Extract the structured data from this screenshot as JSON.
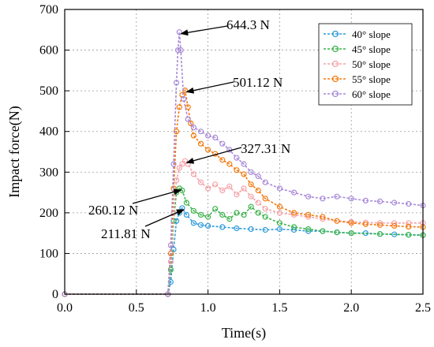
{
  "chart_data": {
    "type": "line",
    "xlabel": "Time(s)",
    "ylabel": "Impact force(N)",
    "xlim": [
      0,
      2.5
    ],
    "ylim": [
      0,
      700
    ],
    "xticks": [
      "0.0",
      "0.5",
      "1.0",
      "1.5",
      "2.0",
      "2.5"
    ],
    "yticks": [
      "0",
      "100",
      "200",
      "300",
      "400",
      "500",
      "600",
      "700"
    ],
    "grid": true,
    "legend_position": "top-right",
    "series": [
      {
        "name": "40° slope",
        "color": "#2e9bdc",
        "points": [
          [
            0.0,
            0
          ],
          [
            0.72,
            0
          ],
          [
            0.74,
            30
          ],
          [
            0.76,
            110
          ],
          [
            0.78,
            180
          ],
          [
            0.8,
            200
          ],
          [
            0.82,
            211.81
          ],
          [
            0.85,
            195
          ],
          [
            0.9,
            175
          ],
          [
            0.95,
            170
          ],
          [
            1.0,
            168
          ],
          [
            1.1,
            165
          ],
          [
            1.2,
            162
          ],
          [
            1.3,
            160
          ],
          [
            1.4,
            158
          ],
          [
            1.5,
            160
          ],
          [
            1.6,
            158
          ],
          [
            1.7,
            155
          ],
          [
            1.8,
            155
          ],
          [
            1.9,
            152
          ],
          [
            2.0,
            150
          ],
          [
            2.1,
            150
          ],
          [
            2.2,
            148
          ],
          [
            2.3,
            147
          ],
          [
            2.4,
            146
          ],
          [
            2.5,
            145
          ]
        ]
      },
      {
        "name": "45° slope",
        "color": "#3cb44b",
        "points": [
          [
            0.0,
            0
          ],
          [
            0.72,
            0
          ],
          [
            0.74,
            60
          ],
          [
            0.76,
            180
          ],
          [
            0.78,
            250
          ],
          [
            0.8,
            260.12
          ],
          [
            0.82,
            255
          ],
          [
            0.85,
            225
          ],
          [
            0.9,
            205
          ],
          [
            0.95,
            195
          ],
          [
            1.0,
            190
          ],
          [
            1.05,
            210
          ],
          [
            1.1,
            195
          ],
          [
            1.15,
            185
          ],
          [
            1.2,
            200
          ],
          [
            1.25,
            195
          ],
          [
            1.3,
            215
          ],
          [
            1.35,
            200
          ],
          [
            1.4,
            190
          ],
          [
            1.5,
            175
          ],
          [
            1.6,
            165
          ],
          [
            1.7,
            160
          ],
          [
            1.8,
            155
          ],
          [
            1.9,
            152
          ],
          [
            2.0,
            150
          ],
          [
            2.2,
            148
          ],
          [
            2.4,
            146
          ],
          [
            2.5,
            145
          ]
        ]
      },
      {
        "name": "50° slope",
        "color": "#f4a3a8",
        "points": [
          [
            0.0,
            0
          ],
          [
            0.72,
            0
          ],
          [
            0.74,
            80
          ],
          [
            0.76,
            200
          ],
          [
            0.78,
            280
          ],
          [
            0.8,
            310
          ],
          [
            0.82,
            320
          ],
          [
            0.84,
            327.31
          ],
          [
            0.86,
            320
          ],
          [
            0.9,
            295
          ],
          [
            0.95,
            275
          ],
          [
            1.0,
            260
          ],
          [
            1.05,
            270
          ],
          [
            1.1,
            255
          ],
          [
            1.15,
            265
          ],
          [
            1.2,
            245
          ],
          [
            1.25,
            260
          ],
          [
            1.3,
            240
          ],
          [
            1.35,
            225
          ],
          [
            1.4,
            210
          ],
          [
            1.5,
            200
          ],
          [
            1.6,
            195
          ],
          [
            1.7,
            190
          ],
          [
            1.8,
            185
          ],
          [
            1.9,
            180
          ],
          [
            2.0,
            178
          ],
          [
            2.1,
            176
          ],
          [
            2.2,
            175
          ],
          [
            2.3,
            175
          ],
          [
            2.4,
            175
          ],
          [
            2.5,
            175
          ]
        ]
      },
      {
        "name": "55° slope",
        "color": "#f37b12",
        "points": [
          [
            0.0,
            0
          ],
          [
            0.72,
            0
          ],
          [
            0.74,
            100
          ],
          [
            0.76,
            260
          ],
          [
            0.78,
            400
          ],
          [
            0.8,
            460
          ],
          [
            0.82,
            490
          ],
          [
            0.84,
            501.12
          ],
          [
            0.86,
            460
          ],
          [
            0.88,
            420
          ],
          [
            0.9,
            390
          ],
          [
            0.95,
            370
          ],
          [
            1.0,
            355
          ],
          [
            1.05,
            345
          ],
          [
            1.1,
            330
          ],
          [
            1.15,
            320
          ],
          [
            1.2,
            305
          ],
          [
            1.25,
            295
          ],
          [
            1.3,
            270
          ],
          [
            1.35,
            255
          ],
          [
            1.4,
            235
          ],
          [
            1.5,
            215
          ],
          [
            1.6,
            200
          ],
          [
            1.7,
            195
          ],
          [
            1.8,
            190
          ],
          [
            1.9,
            180
          ],
          [
            2.0,
            175
          ],
          [
            2.1,
            172
          ],
          [
            2.2,
            170
          ],
          [
            2.3,
            168
          ],
          [
            2.4,
            166
          ],
          [
            2.5,
            165
          ]
        ]
      },
      {
        "name": "60° slope",
        "color": "#a98ad8",
        "points": [
          [
            0.0,
            0
          ],
          [
            0.72,
            0
          ],
          [
            0.74,
            120
          ],
          [
            0.76,
            320
          ],
          [
            0.78,
            520
          ],
          [
            0.79,
            600
          ],
          [
            0.8,
            644.3
          ],
          [
            0.81,
            600
          ],
          [
            0.83,
            480
          ],
          [
            0.86,
            430
          ],
          [
            0.9,
            410
          ],
          [
            0.95,
            400
          ],
          [
            1.0,
            390
          ],
          [
            1.05,
            385
          ],
          [
            1.1,
            370
          ],
          [
            1.15,
            355
          ],
          [
            1.2,
            335
          ],
          [
            1.25,
            320
          ],
          [
            1.3,
            300
          ],
          [
            1.35,
            290
          ],
          [
            1.4,
            275
          ],
          [
            1.5,
            260
          ],
          [
            1.6,
            250
          ],
          [
            1.7,
            240
          ],
          [
            1.8,
            235
          ],
          [
            1.9,
            240
          ],
          [
            2.0,
            235
          ],
          [
            2.1,
            230
          ],
          [
            2.2,
            228
          ],
          [
            2.3,
            225
          ],
          [
            2.4,
            222
          ],
          [
            2.5,
            218
          ]
        ]
      }
    ],
    "annotations": [
      {
        "text": "644.3 N",
        "x": 0.8,
        "y": 644.3
      },
      {
        "text": "501.12 N",
        "x": 0.84,
        "y": 501.12
      },
      {
        "text": "327.31 N",
        "x": 0.84,
        "y": 327.31
      },
      {
        "text": "260.12 N",
        "x": 0.8,
        "y": 260.12
      },
      {
        "text": "211.81 N",
        "x": 0.82,
        "y": 211.81
      }
    ]
  }
}
